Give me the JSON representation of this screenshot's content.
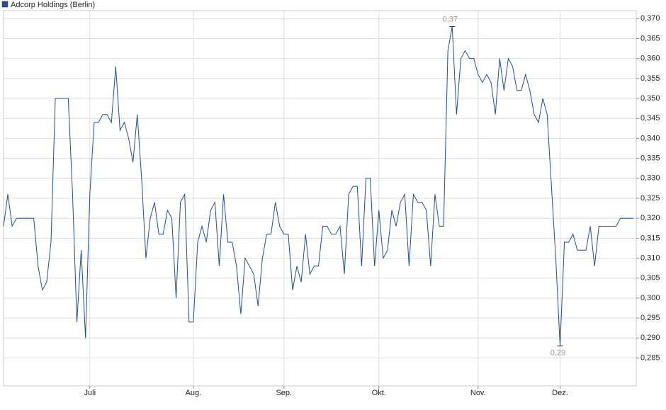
{
  "chart_data": {
    "type": "line",
    "categories": [
      null,
      null,
      null,
      null,
      null,
      null,
      null,
      null,
      null,
      null,
      null,
      null,
      null,
      null,
      null,
      null,
      null,
      null,
      null,
      null,
      "Juli",
      null,
      null,
      null,
      null,
      null,
      null,
      null,
      null,
      null,
      null,
      null,
      null,
      null,
      null,
      null,
      null,
      null,
      null,
      null,
      null,
      null,
      null,
      null,
      "Aug.",
      null,
      null,
      null,
      null,
      null,
      null,
      null,
      null,
      null,
      null,
      null,
      null,
      null,
      null,
      null,
      null,
      null,
      null,
      null,
      null,
      "Sep.",
      null,
      null,
      null,
      null,
      null,
      null,
      null,
      null,
      null,
      null,
      null,
      null,
      null,
      null,
      null,
      null,
      null,
      null,
      null,
      null,
      null,
      "Okt.",
      null,
      null,
      null,
      null,
      null,
      null,
      null,
      null,
      null,
      null,
      null,
      null,
      null,
      null,
      null,
      null,
      null,
      null,
      null,
      null,
      null,
      null,
      "Nov.",
      null,
      null,
      null,
      null,
      null,
      null,
      null,
      null,
      null,
      null,
      null,
      null,
      null,
      null,
      null,
      null,
      null,
      null,
      "Dez.",
      null,
      null,
      null,
      null,
      null,
      null,
      null,
      null,
      null,
      null,
      null,
      null,
      null,
      null,
      null,
      null,
      null
    ],
    "series": [
      {
        "name": "Adcorp Holdings (Berlin)",
        "color": "#1f4e96",
        "values": [
          0.318,
          0.326,
          0.318,
          0.32,
          0.32,
          0.32,
          0.32,
          0.32,
          0.308,
          0.302,
          0.304,
          0.314,
          0.35,
          0.35,
          0.35,
          0.35,
          0.326,
          0.294,
          0.312,
          0.29,
          0.326,
          0.344,
          0.344,
          0.346,
          0.346,
          0.344,
          0.358,
          0.342,
          0.344,
          0.34,
          0.334,
          0.346,
          0.33,
          0.31,
          0.32,
          0.324,
          0.316,
          0.316,
          0.322,
          0.32,
          0.3,
          0.324,
          0.326,
          0.294,
          0.294,
          0.314,
          0.318,
          0.314,
          0.322,
          0.324,
          0.308,
          0.326,
          0.314,
          0.314,
          0.308,
          0.296,
          0.31,
          0.308,
          0.306,
          0.298,
          0.31,
          0.316,
          0.316,
          0.324,
          0.318,
          0.316,
          0.316,
          0.302,
          0.308,
          0.304,
          0.316,
          0.306,
          0.308,
          0.308,
          0.318,
          0.318,
          0.316,
          0.316,
          0.318,
          0.306,
          0.326,
          0.328,
          0.328,
          0.308,
          0.33,
          0.33,
          0.308,
          0.322,
          0.31,
          0.312,
          0.322,
          0.318,
          0.324,
          0.326,
          0.308,
          0.326,
          0.324,
          0.324,
          0.322,
          0.308,
          0.326,
          0.318,
          0.318,
          0.362,
          0.368,
          0.346,
          0.36,
          0.362,
          0.36,
          0.36,
          0.356,
          0.354,
          0.356,
          0.354,
          0.346,
          0.36,
          0.352,
          0.36,
          0.358,
          0.352,
          0.352,
          0.356,
          0.352,
          0.346,
          0.344,
          0.35,
          0.346,
          0.328,
          0.31,
          0.288,
          0.314,
          0.314,
          0.316,
          0.312,
          0.312,
          0.312,
          0.318,
          0.308,
          0.318,
          0.318,
          0.318,
          0.318,
          0.318,
          0.32,
          0.32,
          0.32,
          0.32
        ],
        "value_labels": [
          null,
          null,
          null,
          null,
          null,
          null,
          null,
          null,
          null,
          null,
          null,
          null,
          null,
          null,
          null,
          null,
          null,
          null,
          null,
          null,
          null,
          null,
          null,
          null,
          null,
          null,
          null,
          null,
          null,
          null,
          null,
          null,
          null,
          null,
          null,
          null,
          null,
          null,
          null,
          null,
          null,
          null,
          null,
          null,
          null,
          null,
          null,
          null,
          null,
          null,
          null,
          null,
          null,
          null,
          null,
          null,
          null,
          null,
          null,
          null,
          null,
          null,
          null,
          null,
          null,
          null,
          null,
          null,
          null,
          null,
          null,
          null,
          null,
          null,
          null,
          null,
          null,
          null,
          null,
          null,
          null,
          null,
          null,
          null,
          null,
          null,
          null,
          null,
          null,
          null,
          null,
          null,
          null,
          null,
          null,
          null,
          null,
          null,
          null,
          null,
          null,
          null,
          null,
          null,
          "0,37",
          null,
          null,
          null,
          null,
          null,
          null,
          null,
          null,
          null,
          null,
          null,
          null,
          null,
          null,
          null,
          null,
          null,
          null,
          null,
          null,
          null,
          null,
          null,
          null,
          "0,29",
          null,
          null,
          null,
          null,
          null,
          null,
          null,
          null,
          null,
          null,
          null,
          null,
          null,
          null,
          null,
          null,
          null
        ]
      }
    ],
    "ylim": [
      0.278,
      0.372
    ],
    "yticks": [
      {
        "value": 0.285,
        "label": "0,285"
      },
      {
        "value": 0.29,
        "label": "0,290"
      },
      {
        "value": 0.295,
        "label": "0,295"
      },
      {
        "value": 0.3,
        "label": "0,300"
      },
      {
        "value": 0.305,
        "label": "0,305"
      },
      {
        "value": 0.31,
        "label": "0,310"
      },
      {
        "value": 0.315,
        "label": "0,315"
      },
      {
        "value": 0.32,
        "label": "0,320"
      },
      {
        "value": 0.325,
        "label": "0,325"
      },
      {
        "value": 0.33,
        "label": "0,330"
      },
      {
        "value": 0.335,
        "label": "0,335"
      },
      {
        "value": 0.34,
        "label": "0,340"
      },
      {
        "value": 0.345,
        "label": "0,345"
      },
      {
        "value": 0.35,
        "label": "0,350"
      },
      {
        "value": 0.355,
        "label": "0,355"
      },
      {
        "value": 0.36,
        "label": "0,360"
      },
      {
        "value": 0.365,
        "label": "0,365"
      },
      {
        "value": 0.37,
        "label": "0,370"
      }
    ],
    "grid": true,
    "legend": "top-left"
  }
}
